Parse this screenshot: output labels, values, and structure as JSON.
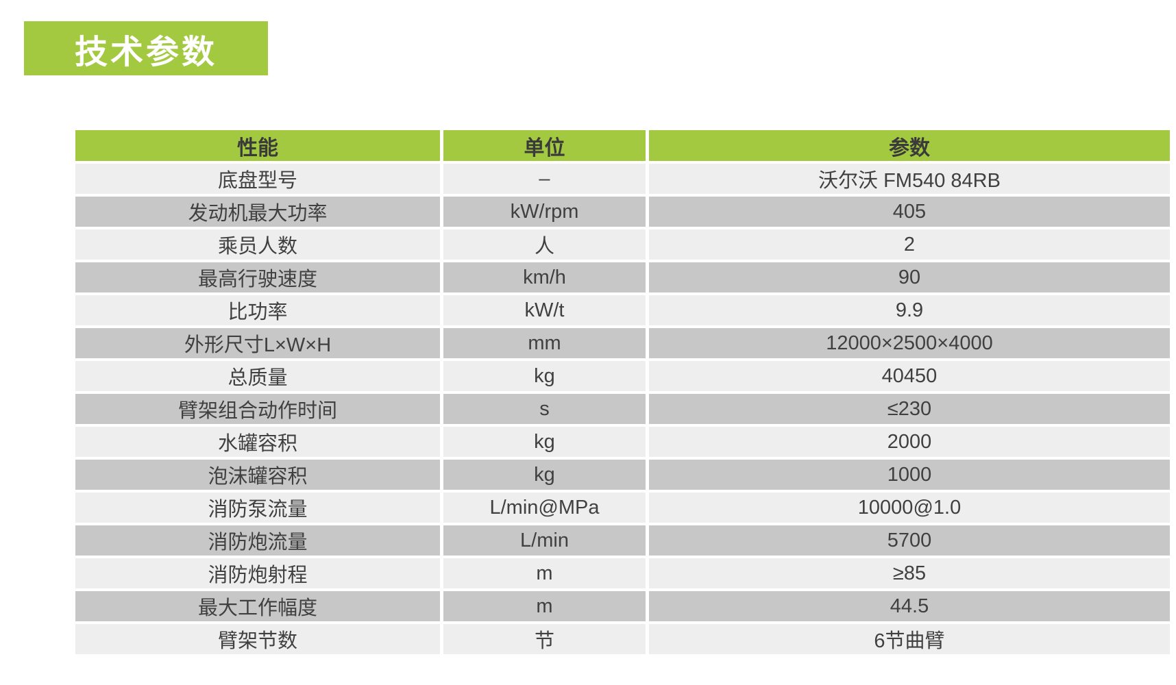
{
  "section_title": "技术参数",
  "table": {
    "headers": {
      "performance": "性能",
      "unit": "单位",
      "parameter": "参数"
    },
    "rows": [
      {
        "name": "底盘型号",
        "unit": "–",
        "value": "沃尔沃 FM540 84RB"
      },
      {
        "name": "发动机最大功率",
        "unit": "kW/rpm",
        "value": "405"
      },
      {
        "name": "乘员人数",
        "unit": "人",
        "value": "2"
      },
      {
        "name": "最高行驶速度",
        "unit": "km/h",
        "value": "90"
      },
      {
        "name": "比功率",
        "unit": "kW/t",
        "value": "9.9"
      },
      {
        "name": "外形尺寸L×W×H",
        "unit": "mm",
        "value": "12000×2500×4000"
      },
      {
        "name": "总质量",
        "unit": "kg",
        "value": "40450"
      },
      {
        "name": "臂架组合动作时间",
        "unit": "s",
        "value": "≤230"
      },
      {
        "name": "水罐容积",
        "unit": "kg",
        "value": "2000"
      },
      {
        "name": "泡沫罐容积",
        "unit": "kg",
        "value": "1000"
      },
      {
        "name": "消防泵流量",
        "unit": "L/min@MPa",
        "value": "10000@1.0"
      },
      {
        "name": "消防炮流量",
        "unit": "L/min",
        "value": "5700"
      },
      {
        "name": "消防炮射程",
        "unit": "m",
        "value": "≥85"
      },
      {
        "name": "最大工作幅度",
        "unit": "m",
        "value": "44.5"
      },
      {
        "name": "臂架节数",
        "unit": "节",
        "value": "6节曲臂"
      }
    ]
  },
  "colors": {
    "accent_green": "#a3c940",
    "row_light": "#eeeeee",
    "row_dark": "#c7c7c7",
    "header_text": "#3a3a3a",
    "body_text": "#404040",
    "badge_text": "#ffffff"
  }
}
